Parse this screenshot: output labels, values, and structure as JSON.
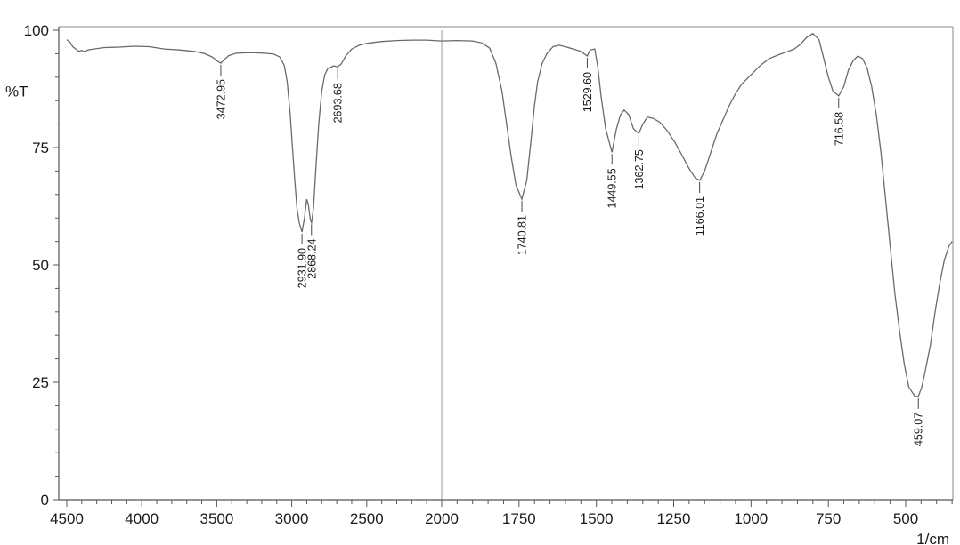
{
  "chart_data": {
    "type": "line",
    "ylabel": "%T",
    "xlabel_partial": "1/cm",
    "xlim": [
      4500,
      350
    ],
    "ylim": [
      0,
      100
    ],
    "x_ticks": [
      {
        "value": 4500,
        "label": "4500"
      },
      {
        "value": 4000,
        "label": "4000"
      },
      {
        "value": 3500,
        "label": "3500"
      },
      {
        "value": 3000,
        "label": "3000"
      },
      {
        "value": 2500,
        "label": "2500"
      },
      {
        "value": 2000,
        "label": "2000"
      },
      {
        "value": 1750,
        "label": "1750"
      },
      {
        "value": 1500,
        "label": "1500"
      },
      {
        "value": 1250,
        "label": "1250"
      },
      {
        "value": 1000,
        "label": "1000"
      },
      {
        "value": 750,
        "label": "750"
      },
      {
        "value": 500,
        "label": "500"
      }
    ],
    "y_ticks": [
      {
        "value": 100,
        "label": "100"
      },
      {
        "value": 75,
        "label": "75"
      },
      {
        "value": 50,
        "label": "50"
      },
      {
        "value": 25,
        "label": "25"
      },
      {
        "value": 0,
        "label": "0"
      }
    ],
    "series": [
      {
        "points": [
          [
            4500,
            98
          ],
          [
            4480,
            97.5
          ],
          [
            4460,
            96.5
          ],
          [
            4440,
            96
          ],
          [
            4420,
            95.5
          ],
          [
            4400,
            95.7
          ],
          [
            4380,
            95.4
          ],
          [
            4360,
            95.8
          ],
          [
            4320,
            96
          ],
          [
            4250,
            96.3
          ],
          [
            4150,
            96.4
          ],
          [
            4050,
            96.6
          ],
          [
            3950,
            96.5
          ],
          [
            3850,
            96
          ],
          [
            3750,
            95.8
          ],
          [
            3650,
            95.5
          ],
          [
            3580,
            95
          ],
          [
            3530,
            94.3
          ],
          [
            3490,
            93.3
          ],
          [
            3472.95,
            93
          ],
          [
            3455,
            93.6
          ],
          [
            3420,
            94.6
          ],
          [
            3370,
            95.1
          ],
          [
            3300,
            95.2
          ],
          [
            3250,
            95.2
          ],
          [
            3180,
            95.1
          ],
          [
            3120,
            94.9
          ],
          [
            3080,
            94.3
          ],
          [
            3050,
            92.5
          ],
          [
            3030,
            89
          ],
          [
            3010,
            82
          ],
          [
            2995,
            75
          ],
          [
            2980,
            68
          ],
          [
            2965,
            62
          ],
          [
            2950,
            59
          ],
          [
            2931.9,
            57
          ],
          [
            2915,
            60
          ],
          [
            2900,
            64
          ],
          [
            2890,
            63
          ],
          [
            2875,
            59.5
          ],
          [
            2868.24,
            59
          ],
          [
            2855,
            62
          ],
          [
            2840,
            70
          ],
          [
            2820,
            80
          ],
          [
            2800,
            87
          ],
          [
            2780,
            90.5
          ],
          [
            2760,
            91.8
          ],
          [
            2720,
            92.4
          ],
          [
            2693.68,
            92.2
          ],
          [
            2670,
            92.8
          ],
          [
            2640,
            94.5
          ],
          [
            2600,
            96
          ],
          [
            2550,
            96.8
          ],
          [
            2500,
            97.2
          ],
          [
            2450,
            97.4
          ],
          [
            2400,
            97.6
          ],
          [
            2300,
            97.8
          ],
          [
            2200,
            97.9
          ],
          [
            2100,
            97.9
          ],
          [
            2000,
            97.7
          ],
          [
            1950,
            97.8
          ],
          [
            1900,
            97.7
          ],
          [
            1870,
            97.3
          ],
          [
            1845,
            96.2
          ],
          [
            1825,
            93
          ],
          [
            1805,
            87
          ],
          [
            1790,
            80
          ],
          [
            1775,
            73
          ],
          [
            1760,
            67
          ],
          [
            1740.81,
            64
          ],
          [
            1725,
            68
          ],
          [
            1712,
            76
          ],
          [
            1700,
            84
          ],
          [
            1690,
            89
          ],
          [
            1675,
            93
          ],
          [
            1660,
            95
          ],
          [
            1640,
            96.5
          ],
          [
            1620,
            96.8
          ],
          [
            1600,
            96.5
          ],
          [
            1575,
            96
          ],
          [
            1550,
            95.5
          ],
          [
            1529.6,
            94.5
          ],
          [
            1520,
            95.8
          ],
          [
            1505,
            96
          ],
          [
            1495,
            92
          ],
          [
            1485,
            86
          ],
          [
            1470,
            79
          ],
          [
            1449.55,
            74
          ],
          [
            1435,
            79
          ],
          [
            1422,
            82
          ],
          [
            1410,
            83
          ],
          [
            1395,
            82
          ],
          [
            1380,
            79
          ],
          [
            1362.75,
            78
          ],
          [
            1350,
            80
          ],
          [
            1335,
            81.5
          ],
          [
            1315,
            81.2
          ],
          [
            1295,
            80.4
          ],
          [
            1270,
            78.5
          ],
          [
            1245,
            76
          ],
          [
            1220,
            73
          ],
          [
            1200,
            70.5
          ],
          [
            1180,
            68.5
          ],
          [
            1166.01,
            68
          ],
          [
            1150,
            70
          ],
          [
            1130,
            74
          ],
          [
            1110,
            78
          ],
          [
            1090,
            81
          ],
          [
            1070,
            84
          ],
          [
            1050,
            86.5
          ],
          [
            1030,
            88.5
          ],
          [
            1000,
            90.5
          ],
          [
            970,
            92.5
          ],
          [
            940,
            94
          ],
          [
            910,
            94.8
          ],
          [
            880,
            95.5
          ],
          [
            860,
            96
          ],
          [
            840,
            97
          ],
          [
            820,
            98.5
          ],
          [
            800,
            99.3
          ],
          [
            780,
            98
          ],
          [
            765,
            94
          ],
          [
            750,
            90
          ],
          [
            735,
            87
          ],
          [
            716.58,
            86
          ],
          [
            700,
            88
          ],
          [
            685,
            91.5
          ],
          [
            670,
            93.5
          ],
          [
            655,
            94.5
          ],
          [
            640,
            94
          ],
          [
            625,
            92
          ],
          [
            610,
            88
          ],
          [
            595,
            82
          ],
          [
            580,
            74
          ],
          [
            565,
            64
          ],
          [
            550,
            54
          ],
          [
            535,
            44
          ],
          [
            520,
            36
          ],
          [
            505,
            29
          ],
          [
            490,
            24
          ],
          [
            470,
            22
          ],
          [
            459.07,
            22
          ],
          [
            448,
            24
          ],
          [
            435,
            28
          ],
          [
            420,
            33
          ],
          [
            405,
            40
          ],
          [
            390,
            46
          ],
          [
            375,
            51
          ],
          [
            360,
            54
          ],
          [
            350,
            55
          ]
        ]
      }
    ],
    "peak_labels": [
      {
        "x": 3472.95,
        "y": 93,
        "label": "3472.95"
      },
      {
        "x": 2931.9,
        "y": 57,
        "label": "2931.90"
      },
      {
        "x": 2868.24,
        "y": 59,
        "label": "2868.24"
      },
      {
        "x": 2693.68,
        "y": 92.2,
        "label": "2693.68"
      },
      {
        "x": 1740.81,
        "y": 64,
        "label": "1740.81"
      },
      {
        "x": 1529.6,
        "y": 94.5,
        "label": "1529.60"
      },
      {
        "x": 1449.55,
        "y": 74,
        "label": "1449.55"
      },
      {
        "x": 1362.75,
        "y": 78,
        "label": "1362.75"
      },
      {
        "x": 1166.01,
        "y": 68,
        "label": "1166.01"
      },
      {
        "x": 716.58,
        "y": 86,
        "label": "716.58"
      },
      {
        "x": 459.07,
        "y": 22,
        "label": "459.07"
      }
    ],
    "colors": {
      "axis": "#555555",
      "line": "#6a6a6a",
      "text": "#1a1a1a",
      "grid": "#d8d8d8"
    }
  }
}
